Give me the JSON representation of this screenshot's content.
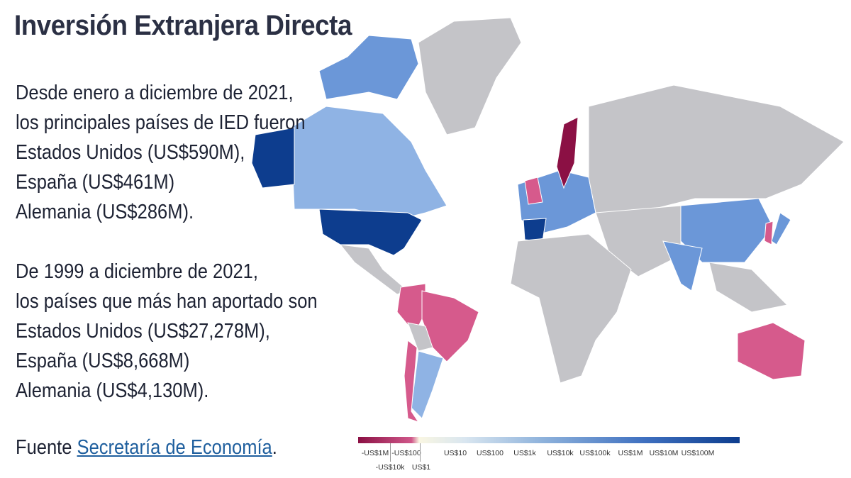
{
  "title": "Inversión Extranjera Directa",
  "paragraph1": [
    "Desde enero a diciembre de 2021,",
    "los principales países de IED fueron",
    "Estados Unidos (US$590M),",
    "España (US$461M)",
    "Alemania (US$286M)."
  ],
  "paragraph2": [
    "De 1999 a diciembre de 2021,",
    "los países que más han aportado son",
    "Estados Unidos (US$27,278M),",
    "España (US$8,668M)",
    "Alemania (US$4,130M)."
  ],
  "source": {
    "prefix": "Fuente ",
    "link": "Secretaría de Economía",
    "suffix": "."
  },
  "legend": {
    "ticks_top": [
      "-US$1M",
      "-US$100",
      "US$10",
      "US$100",
      "US$1k",
      "US$10k",
      "US$100k",
      "US$1M",
      "US$10M",
      "US$100M"
    ],
    "ticks_bottom": [
      "-US$10k",
      "US$1"
    ]
  },
  "colors": {
    "no_data": "#c4c4c8",
    "dark_blue": "#0d3d8e",
    "mid_blue": "#6b97d8",
    "light_blue": "#8fb3e4",
    "pink": "#d65a8c",
    "dark_red": "#8b1044"
  }
}
